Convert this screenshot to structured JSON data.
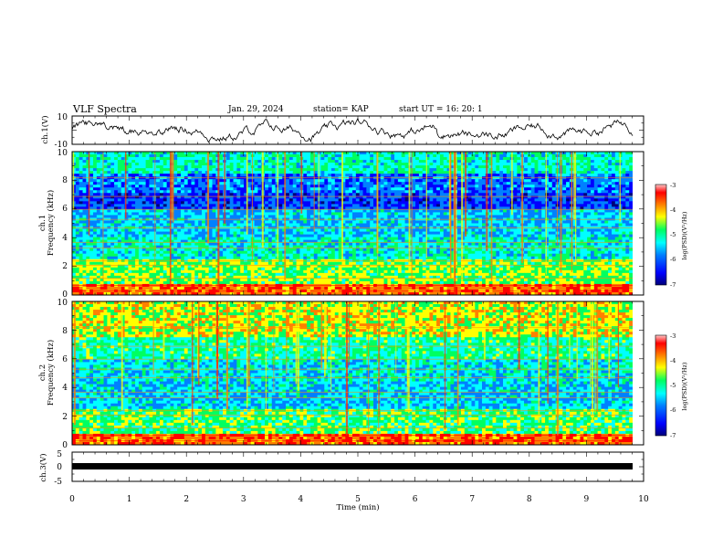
{
  "header": {
    "title": "VLF Spectra",
    "date": "Jan. 29, 2024",
    "station": "station= KAP",
    "start_ut": "start UT =  16: 20: 1"
  },
  "chart_data": [
    {
      "type": "line",
      "panel": "ch1-waveform",
      "ylabel": "ch.1(V)",
      "ylim": [
        -10,
        10
      ],
      "yticks": [
        "10",
        "-10"
      ],
      "xlim": [
        0,
        10
      ]
    },
    {
      "type": "heatmap",
      "panel": "ch1-spectrogram",
      "ylabel_channel": "ch.1",
      "ylabel": "Frequency (kHz)",
      "ylim": [
        0,
        10
      ],
      "yticks": [
        "0",
        "2",
        "4",
        "6",
        "8",
        "10"
      ],
      "xlim": [
        0,
        10
      ],
      "colorbar": {
        "ticks": [
          "-3",
          "-4",
          "-5",
          "-6",
          "-7"
        ],
        "label": "log(PSD)(V²/Hz)"
      }
    },
    {
      "type": "heatmap",
      "panel": "ch2-spectrogram",
      "ylabel_channel": "ch.2",
      "ylabel": "Frequency (kHz)",
      "ylim": [
        0,
        10
      ],
      "yticks": [
        "0",
        "2",
        "4",
        "6",
        "8",
        "10"
      ],
      "xlim": [
        0,
        10
      ],
      "colorbar": {
        "ticks": [
          "-3",
          "-4",
          "-5",
          "-6",
          "-7"
        ],
        "label": "log(PSD)(V²/Hz)"
      }
    },
    {
      "type": "line",
      "panel": "ch3-waveform",
      "ylabel": "ch.3(V)",
      "ylim": [
        -5,
        5
      ],
      "yticks": [
        "5",
        "0",
        "-5"
      ],
      "xlim": [
        0,
        10
      ],
      "xlabel": "Time (min)",
      "xticks": [
        "0",
        "1",
        "2",
        "3",
        "4",
        "5",
        "6",
        "7",
        "8",
        "9",
        "10"
      ]
    }
  ],
  "colors": {
    "colormap": [
      "#00007a",
      "#0000ff",
      "#0080ff",
      "#00ffff",
      "#00ff60",
      "#ffff00",
      "#ff8000",
      "#ff0000",
      "#ffb8b8"
    ]
  }
}
